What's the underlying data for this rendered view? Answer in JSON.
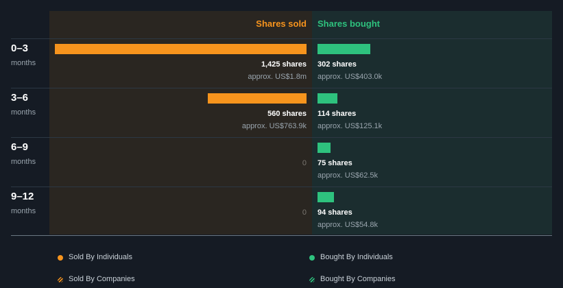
{
  "headers": {
    "sold": "Shares sold",
    "bought": "Shares bought"
  },
  "colors": {
    "sold": "#f7941d",
    "bought": "#2ec27e",
    "sold_bg": "#2a2621",
    "bought_bg": "#1b2d2f",
    "page_bg": "#151b24"
  },
  "rows": [
    {
      "period": "0–3",
      "unit": "months",
      "sold_text": "1,425 shares",
      "sold_approx": "approx. US$1.8m",
      "bought_text": "302 shares",
      "bought_approx": "approx. US$403.0k"
    },
    {
      "period": "3–6",
      "unit": "months",
      "sold_text": "560 shares",
      "sold_approx": "approx. US$763.9k",
      "bought_text": "114 shares",
      "bought_approx": "approx. US$125.1k"
    },
    {
      "period": "6–9",
      "unit": "months",
      "sold_zero": "0",
      "bought_text": "75 shares",
      "bought_approx": "approx. US$62.5k"
    },
    {
      "period": "9–12",
      "unit": "months",
      "sold_zero": "0",
      "bought_text": "94 shares",
      "bought_approx": "approx. US$54.8k"
    }
  ],
  "legend": {
    "sold_individuals": "Sold By Individuals",
    "bought_individuals": "Bought By Individuals",
    "sold_companies": "Sold By Companies",
    "bought_companies": "Bought By Companies"
  },
  "chart_data": {
    "type": "bar",
    "categories": [
      "0–3 months",
      "3–6 months",
      "6–9 months",
      "9–12 months"
    ],
    "series": [
      {
        "name": "Shares sold",
        "values": [
          1425,
          560,
          0,
          0
        ],
        "approx_usd": [
          "US$1.8m",
          "US$763.9k",
          "",
          ""
        ]
      },
      {
        "name": "Shares bought",
        "values": [
          302,
          114,
          75,
          94
        ],
        "approx_usd": [
          "US$403.0k",
          "US$125.1k",
          "US$62.5k",
          "US$54.8k"
        ]
      }
    ],
    "orientation": "horizontal",
    "sold_direction": "leftward",
    "legend": [
      "Sold By Individuals",
      "Bought By Individuals",
      "Sold By Companies",
      "Bought By Companies"
    ],
    "legend_position": "bottom"
  }
}
